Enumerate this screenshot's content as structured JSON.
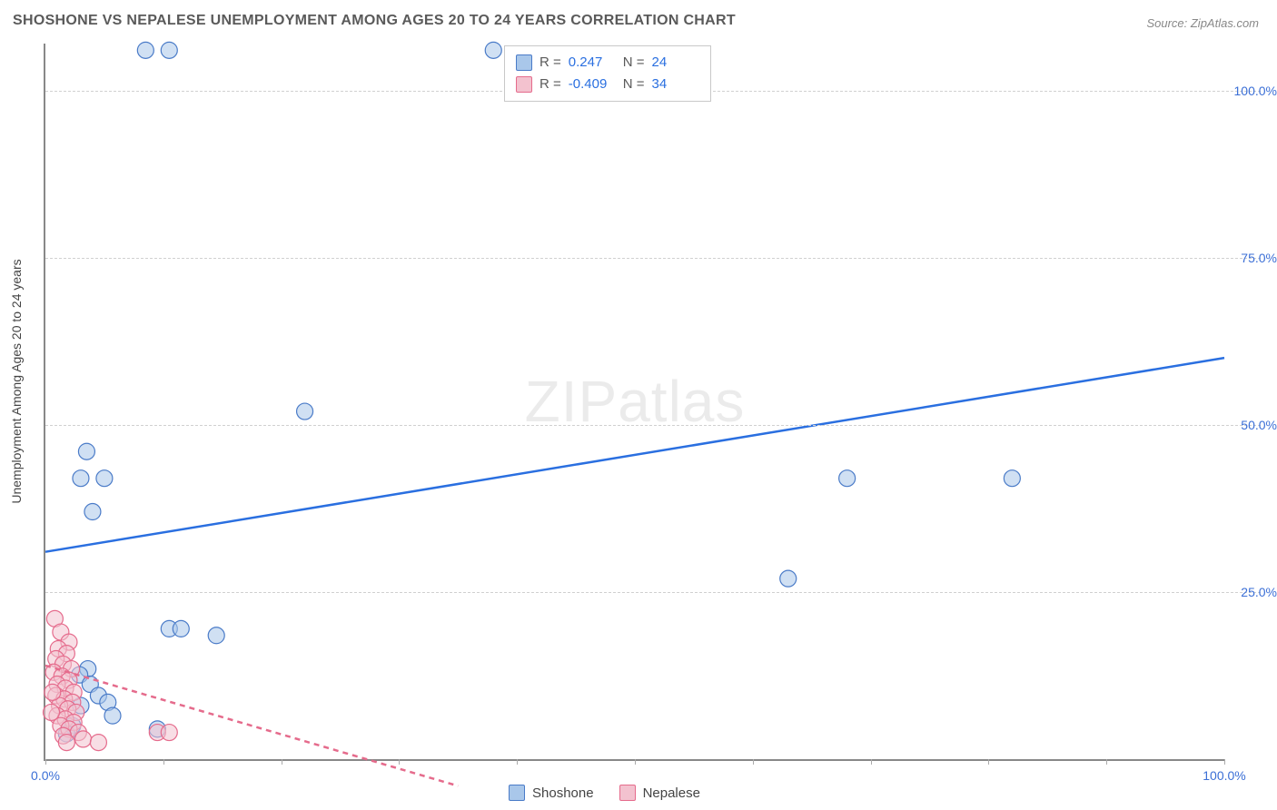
{
  "chart": {
    "type": "scatter",
    "title": "SHOSHONE VS NEPALESE UNEMPLOYMENT AMONG AGES 20 TO 24 YEARS CORRELATION CHART",
    "source": "Source: ZipAtlas.com",
    "ylabel": "Unemployment Among Ages 20 to 24 years",
    "watermark_part1": "ZIP",
    "watermark_part2": "atlas",
    "background_color": "#ffffff",
    "grid_color": "#d0d0d0",
    "axis_color": "#888888",
    "tick_label_color": "#3b6fd6",
    "xlim": [
      0,
      100
    ],
    "ylim": [
      0,
      107
    ],
    "xtick_positions": [
      0,
      10,
      20,
      30,
      40,
      50,
      60,
      70,
      80,
      90,
      100
    ],
    "xtick_labels": {
      "0": "0.0%",
      "100": "100.0%"
    },
    "ytick_positions": [
      25,
      50,
      75,
      100
    ],
    "ytick_labels": {
      "25": "25.0%",
      "50": "50.0%",
      "75": "75.0%",
      "100": "100.0%"
    },
    "marker_radius": 9,
    "marker_opacity": 0.55,
    "trendline_width": 2.5,
    "series": [
      {
        "name": "Shoshone",
        "fill_color": "#a9c7ea",
        "stroke_color": "#4a7bc8",
        "trendline_color": "#2a6fe0",
        "trendline_dash": "none",
        "trendline": {
          "x1": 0,
          "y1": 31,
          "x2": 100,
          "y2": 60
        },
        "points": [
          {
            "x": 8.5,
            "y": 106
          },
          {
            "x": 10.5,
            "y": 106
          },
          {
            "x": 38,
            "y": 106
          },
          {
            "x": 3.5,
            "y": 46
          },
          {
            "x": 3,
            "y": 42
          },
          {
            "x": 5,
            "y": 42
          },
          {
            "x": 4,
            "y": 37
          },
          {
            "x": 22,
            "y": 52
          },
          {
            "x": 68,
            "y": 42
          },
          {
            "x": 82,
            "y": 42
          },
          {
            "x": 63,
            "y": 27
          },
          {
            "x": 10.5,
            "y": 19.5
          },
          {
            "x": 11.5,
            "y": 19.5
          },
          {
            "x": 14.5,
            "y": 18.5
          },
          {
            "x": 3.6,
            "y": 13.5
          },
          {
            "x": 2.9,
            "y": 12.6
          },
          {
            "x": 3.8,
            "y": 11.2
          },
          {
            "x": 4.5,
            "y": 9.5
          },
          {
            "x": 5.3,
            "y": 8.5
          },
          {
            "x": 3.0,
            "y": 8.0
          },
          {
            "x": 5.7,
            "y": 6.5
          },
          {
            "x": 9.5,
            "y": 4.5
          },
          {
            "x": 2.3,
            "y": 5.0
          },
          {
            "x": 1.8,
            "y": 3.8
          }
        ]
      },
      {
        "name": "Nepalese",
        "fill_color": "#f3c2cf",
        "stroke_color": "#e56b8c",
        "trendline_color": "#e56b8c",
        "trendline_dash": "6 5",
        "trendline": {
          "x1": 0,
          "y1": 14,
          "x2": 35,
          "y2": -4
        },
        "points": [
          {
            "x": 0.8,
            "y": 21
          },
          {
            "x": 1.3,
            "y": 19
          },
          {
            "x": 2.0,
            "y": 17.5
          },
          {
            "x": 1.1,
            "y": 16.5
          },
          {
            "x": 1.8,
            "y": 15.8
          },
          {
            "x": 0.9,
            "y": 15.0
          },
          {
            "x": 1.5,
            "y": 14.2
          },
          {
            "x": 2.2,
            "y": 13.5
          },
          {
            "x": 0.7,
            "y": 13.0
          },
          {
            "x": 1.4,
            "y": 12.4
          },
          {
            "x": 2.0,
            "y": 11.8
          },
          {
            "x": 1.0,
            "y": 11.2
          },
          {
            "x": 1.7,
            "y": 10.6
          },
          {
            "x": 2.4,
            "y": 10.0
          },
          {
            "x": 0.9,
            "y": 9.5
          },
          {
            "x": 1.6,
            "y": 9.0
          },
          {
            "x": 2.3,
            "y": 8.5
          },
          {
            "x": 1.2,
            "y": 8.0
          },
          {
            "x": 1.9,
            "y": 7.5
          },
          {
            "x": 2.6,
            "y": 7.0
          },
          {
            "x": 1.0,
            "y": 6.5
          },
          {
            "x": 1.7,
            "y": 6.0
          },
          {
            "x": 2.4,
            "y": 5.5
          },
          {
            "x": 1.3,
            "y": 5.0
          },
          {
            "x": 2.0,
            "y": 4.5
          },
          {
            "x": 2.8,
            "y": 4.0
          },
          {
            "x": 1.5,
            "y": 3.5
          },
          {
            "x": 3.2,
            "y": 3.0
          },
          {
            "x": 4.5,
            "y": 2.5
          },
          {
            "x": 1.8,
            "y": 2.5
          },
          {
            "x": 9.5,
            "y": 4.0
          },
          {
            "x": 10.5,
            "y": 4.0
          },
          {
            "x": 0.6,
            "y": 10
          },
          {
            "x": 0.5,
            "y": 7
          }
        ]
      }
    ]
  },
  "legend_top": {
    "rows": [
      {
        "swatch_fill": "#a9c7ea",
        "swatch_stroke": "#4a7bc8",
        "r_label": "R =",
        "r_value": "0.247",
        "n_label": "N =",
        "n_value": "24"
      },
      {
        "swatch_fill": "#f3c2cf",
        "swatch_stroke": "#e56b8c",
        "r_label": "R =",
        "r_value": "-0.409",
        "n_label": "N =",
        "n_value": "34"
      }
    ]
  },
  "legend_bottom": {
    "items": [
      {
        "swatch_fill": "#a9c7ea",
        "swatch_stroke": "#4a7bc8",
        "label": "Shoshone"
      },
      {
        "swatch_fill": "#f3c2cf",
        "swatch_stroke": "#e56b8c",
        "label": "Nepalese"
      }
    ]
  }
}
